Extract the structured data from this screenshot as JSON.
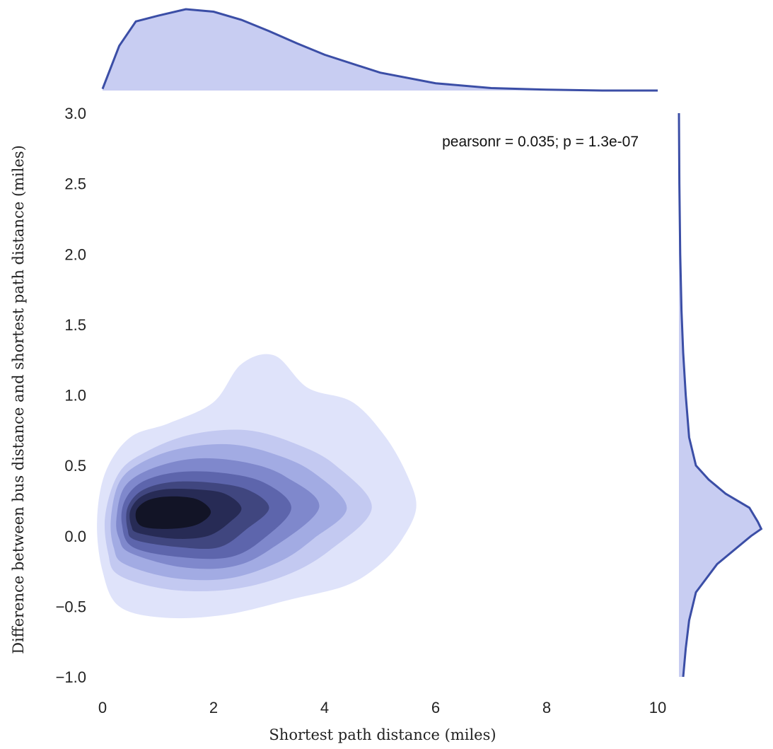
{
  "chart_data": {
    "type": "kde-joint",
    "title": "",
    "annotation": "pearsonr = 0.035; p = 1.3e-07",
    "xlabel": "Shortest path distance (miles)",
    "ylabel": "Difference between bus distance and shortest path distance (miles)",
    "xlim": [
      0,
      10
    ],
    "ylim": [
      -1.0,
      3.0
    ],
    "x_ticks": [
      "0",
      "2",
      "4",
      "6",
      "8",
      "10"
    ],
    "y_ticks": [
      "−1.0",
      "−0.5",
      "0.0",
      "0.5",
      "1.0",
      "1.5",
      "2.0",
      "2.5",
      "3.0"
    ],
    "x_tick_values": [
      0,
      2,
      4,
      6,
      8,
      10
    ],
    "y_tick_values": [
      -1.0,
      -0.5,
      0.0,
      0.5,
      1.0,
      1.5,
      2.0,
      2.5,
      3.0
    ],
    "grid": false,
    "colors": {
      "marginal_line": "#3b4ea6",
      "marginal_fill": "#c8cdf2",
      "contour_levels": [
        "#dfe3fa",
        "#c3c9f1",
        "#a2abe3",
        "#7f88cc",
        "#5d65ac",
        "#40467f",
        "#272b55",
        "#121426"
      ]
    },
    "contours": [
      {
        "level": 1,
        "points": [
          [
            0.3,
            -0.5
          ],
          [
            1.1,
            -0.58
          ],
          [
            2.2,
            -0.56
          ],
          [
            3.4,
            -0.45
          ],
          [
            4.4,
            -0.35
          ],
          [
            5.0,
            -0.2
          ],
          [
            5.4,
            -0.02
          ],
          [
            5.65,
            0.2
          ],
          [
            5.5,
            0.42
          ],
          [
            5.1,
            0.7
          ],
          [
            4.5,
            0.95
          ],
          [
            3.7,
            1.05
          ],
          [
            3.1,
            1.28
          ],
          [
            2.5,
            1.22
          ],
          [
            2.0,
            0.95
          ],
          [
            1.2,
            0.8
          ],
          [
            0.5,
            0.7
          ],
          [
            0.05,
            0.45
          ],
          [
            -0.1,
            0.1
          ],
          [
            0.0,
            -0.25
          ]
        ]
      },
      {
        "level": 2,
        "points": [
          [
            0.3,
            -0.28
          ],
          [
            1.2,
            -0.38
          ],
          [
            2.3,
            -0.38
          ],
          [
            3.3,
            -0.28
          ],
          [
            4.1,
            -0.1
          ],
          [
            4.85,
            0.2
          ],
          [
            4.2,
            0.5
          ],
          [
            3.5,
            0.65
          ],
          [
            2.6,
            0.75
          ],
          [
            1.6,
            0.72
          ],
          [
            0.8,
            0.6
          ],
          [
            0.3,
            0.45
          ],
          [
            0.05,
            0.15
          ],
          [
            0.1,
            -0.12
          ]
        ]
      },
      {
        "level": 3,
        "points": [
          [
            0.4,
            -0.2
          ],
          [
            1.3,
            -0.3
          ],
          [
            2.3,
            -0.3
          ],
          [
            3.2,
            -0.18
          ],
          [
            3.8,
            -0.02
          ],
          [
            4.4,
            0.2
          ],
          [
            3.8,
            0.45
          ],
          [
            3.1,
            0.58
          ],
          [
            2.3,
            0.65
          ],
          [
            1.4,
            0.62
          ],
          [
            0.7,
            0.52
          ],
          [
            0.3,
            0.38
          ],
          [
            0.15,
            0.12
          ],
          [
            0.2,
            -0.08
          ]
        ]
      },
      {
        "level": 4,
        "points": [
          [
            0.5,
            -0.12
          ],
          [
            1.4,
            -0.22
          ],
          [
            2.3,
            -0.22
          ],
          [
            3.0,
            -0.1
          ],
          [
            3.9,
            0.2
          ],
          [
            3.3,
            0.42
          ],
          [
            2.6,
            0.52
          ],
          [
            1.7,
            0.55
          ],
          [
            0.9,
            0.48
          ],
          [
            0.4,
            0.35
          ],
          [
            0.25,
            0.12
          ],
          [
            0.3,
            -0.02
          ]
        ]
      },
      {
        "level": 5,
        "points": [
          [
            0.55,
            -0.08
          ],
          [
            1.4,
            -0.15
          ],
          [
            2.3,
            -0.15
          ],
          [
            2.9,
            -0.02
          ],
          [
            3.4,
            0.2
          ],
          [
            2.9,
            0.38
          ],
          [
            2.1,
            0.45
          ],
          [
            1.3,
            0.45
          ],
          [
            0.7,
            0.38
          ],
          [
            0.4,
            0.25
          ],
          [
            0.35,
            0.08
          ]
        ]
      },
      {
        "level": 6,
        "points": [
          [
            0.6,
            -0.03
          ],
          [
            1.4,
            -0.08
          ],
          [
            2.1,
            -0.08
          ],
          [
            2.6,
            0.05
          ],
          [
            3.0,
            0.2
          ],
          [
            2.6,
            0.33
          ],
          [
            1.9,
            0.38
          ],
          [
            1.2,
            0.38
          ],
          [
            0.7,
            0.32
          ],
          [
            0.45,
            0.2
          ],
          [
            0.45,
            0.05
          ]
        ]
      },
      {
        "level": 7,
        "points": [
          [
            0.65,
            0.02
          ],
          [
            1.3,
            -0.02
          ],
          [
            1.9,
            0.0
          ],
          [
            2.3,
            0.1
          ],
          [
            2.5,
            0.2
          ],
          [
            2.2,
            0.3
          ],
          [
            1.7,
            0.33
          ],
          [
            1.1,
            0.33
          ],
          [
            0.7,
            0.28
          ],
          [
            0.5,
            0.18
          ],
          [
            0.52,
            0.07
          ]
        ]
      },
      {
        "level": 8,
        "points": [
          [
            0.7,
            0.07
          ],
          [
            1.2,
            0.05
          ],
          [
            1.7,
            0.08
          ],
          [
            1.95,
            0.17
          ],
          [
            1.7,
            0.26
          ],
          [
            1.2,
            0.28
          ],
          [
            0.8,
            0.25
          ],
          [
            0.6,
            0.17
          ]
        ]
      }
    ],
    "x_marginal": {
      "x": [
        0,
        0.3,
        0.6,
        1.0,
        1.5,
        2.0,
        2.5,
        3.0,
        3.5,
        4.0,
        5.0,
        6.0,
        7.0,
        8.0,
        9.0,
        10.0
      ],
      "density": [
        0.02,
        0.55,
        0.85,
        0.92,
        1.0,
        0.97,
        0.87,
        0.73,
        0.58,
        0.44,
        0.22,
        0.09,
        0.03,
        0.01,
        0.0,
        0.0
      ]
    },
    "y_marginal": {
      "y": [
        -1.0,
        -0.8,
        -0.6,
        -0.4,
        -0.2,
        0.0,
        0.05,
        0.1,
        0.2,
        0.3,
        0.4,
        0.5,
        0.7,
        1.0,
        1.3,
        1.6,
        2.0,
        2.5,
        3.0
      ],
      "density": [
        0.05,
        0.08,
        0.12,
        0.2,
        0.45,
        0.85,
        0.97,
        0.93,
        0.83,
        0.55,
        0.35,
        0.2,
        0.12,
        0.08,
        0.05,
        0.03,
        0.015,
        0.005,
        0.0
      ]
    }
  }
}
